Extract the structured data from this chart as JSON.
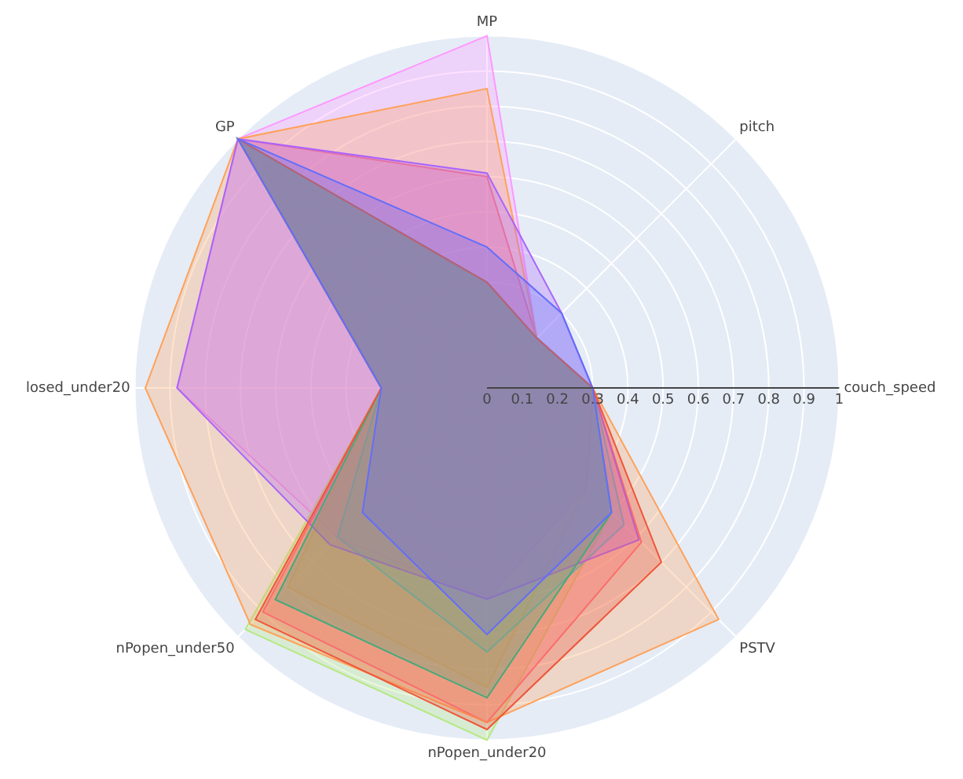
{
  "chart_data": {
    "type": "radar",
    "categories": [
      "MP",
      "pitch",
      "couch_speed",
      "PSTV",
      "nPopen_under20",
      "nPopen_under50",
      "losed_under20",
      "GP"
    ],
    "ylim": [
      0,
      1
    ],
    "yticks": [
      0,
      0.1,
      0.2,
      0.3,
      0.4,
      0.5,
      0.6,
      0.7,
      0.8,
      0.9,
      1
    ],
    "grid": true,
    "legend": false,
    "series": [
      {
        "color": "#636efa",
        "values": [
          0.4,
          0.3,
          0.3,
          0.5,
          0.7,
          0.5,
          0.3,
          1.0
        ]
      },
      {
        "color": "#ef553b",
        "values": [
          0.3,
          0.2,
          0.3,
          0.7,
          0.97,
          0.93,
          0.3,
          1.0
        ]
      },
      {
        "color": "#00cc96",
        "values": [
          0.3,
          0.2,
          0.3,
          0.5,
          0.88,
          0.85,
          0.3,
          1.0
        ]
      },
      {
        "color": "#ab63fa",
        "values": [
          0.61,
          0.3,
          0.3,
          0.61,
          0.6,
          0.63,
          0.88,
          1.0
        ]
      },
      {
        "color": "#ffa15a",
        "values": [
          0.85,
          0.2,
          0.3,
          0.93,
          0.95,
          0.95,
          0.97,
          1.0
        ]
      },
      {
        "color": "#19d3f3",
        "values": [
          0.3,
          0.2,
          0.3,
          0.55,
          0.75,
          0.6,
          0.3,
          1.0
        ]
      },
      {
        "color": "#ff6692",
        "values": [
          0.6,
          0.2,
          0.3,
          0.62,
          0.95,
          0.9,
          0.3,
          1.0
        ]
      },
      {
        "color": "#b6e880",
        "values": [
          0.3,
          0.2,
          0.3,
          0.5,
          1.0,
          0.97,
          0.3,
          1.0
        ]
      },
      {
        "color": "#ff97ff",
        "values": [
          1.0,
          0.2,
          0.3,
          0.4,
          0.6,
          0.6,
          0.88,
          1.0
        ]
      },
      {
        "color": "#fecb52",
        "values": [
          0.3,
          0.2,
          0.3,
          0.4,
          0.85,
          0.8,
          0.3,
          0.9
        ]
      }
    ]
  }
}
